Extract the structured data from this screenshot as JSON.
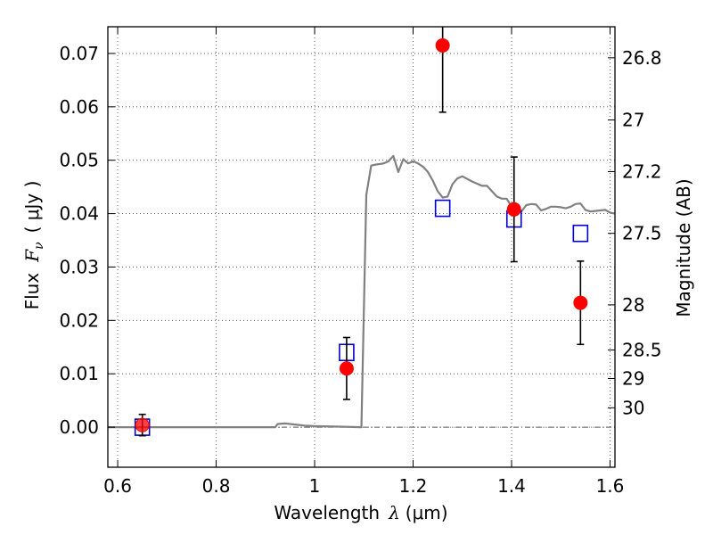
{
  "chart_data": {
    "type": "scatter",
    "xlabel_prefix": "Wavelength",
    "xlabel_symbol": "λ",
    "xlabel_unit": "(μm)",
    "ylabel_prefix": "Flux",
    "ylabel_symbol": "F",
    "ylabel_subscript": "ν",
    "ylabel_unit": "( μJy )",
    "y2label": "Magnitude (AB)",
    "xlim": [
      0.58,
      1.61
    ],
    "ylim": [
      -0.0075,
      0.075
    ],
    "x_ticks": [
      0.6,
      0.8,
      1.0,
      1.2,
      1.4,
      1.6
    ],
    "x_tick_labels": [
      "0.6",
      "0.8",
      "1",
      "1.2",
      "1.4",
      "1.6"
    ],
    "y_ticks": [
      0.0,
      0.01,
      0.02,
      0.03,
      0.04,
      0.05,
      0.06,
      0.07
    ],
    "y_tick_labels": [
      "0.00",
      "0.01",
      "0.02",
      "0.03",
      "0.04",
      "0.05",
      "0.06",
      "0.07"
    ],
    "mag_ticks": [
      26.8,
      27.0,
      27.2,
      27.5,
      28.0,
      28.5,
      29.0,
      30.0
    ],
    "mag_tick_labels": [
      "26.8",
      "27",
      "27.2",
      "27.5",
      "28",
      "28.5",
      "29",
      "30"
    ],
    "grid": true,
    "colors": {
      "observed": "#ff0000",
      "errorbar": "#000000",
      "model_points": "#0000cc",
      "template": "#808080",
      "zero_line": "#555555"
    },
    "series": [
      {
        "kind": "line",
        "x": [
          0.58,
          0.92,
          0.925,
          0.94,
          0.96,
          0.98,
          1.0,
          1.05,
          1.095,
          1.105,
          1.115,
          1.125,
          1.14,
          1.15,
          1.16,
          1.17,
          1.18,
          1.19,
          1.2,
          1.21,
          1.22,
          1.23,
          1.24,
          1.25,
          1.26,
          1.27,
          1.28,
          1.29,
          1.3,
          1.32,
          1.34,
          1.35,
          1.37,
          1.38,
          1.39,
          1.4,
          1.41,
          1.42,
          1.43,
          1.44,
          1.45,
          1.46,
          1.47,
          1.48,
          1.49,
          1.5,
          1.51,
          1.52,
          1.53,
          1.54,
          1.55,
          1.56,
          1.57,
          1.58,
          1.59,
          1.6,
          1.61
        ],
        "y": [
          0.0,
          0.0,
          0.0006,
          0.0007,
          0.0005,
          0.0003,
          0.0002,
          0.0001,
          0.0,
          0.0435,
          0.049,
          0.0492,
          0.0494,
          0.0498,
          0.0508,
          0.0478,
          0.0502,
          0.0494,
          0.0498,
          0.0494,
          0.0488,
          0.0478,
          0.0462,
          0.0442,
          0.043,
          0.0432,
          0.0455,
          0.0466,
          0.047,
          0.046,
          0.0452,
          0.0452,
          0.0432,
          0.0428,
          0.0428,
          0.0413,
          0.0402,
          0.0404,
          0.0416,
          0.0418,
          0.0417,
          0.0406,
          0.0409,
          0.0413,
          0.0413,
          0.0412,
          0.041,
          0.0413,
          0.0418,
          0.0419,
          0.0407,
          0.0404,
          0.0405,
          0.0406,
          0.0407,
          0.0402,
          0.04
        ]
      },
      {
        "kind": "points_open_square",
        "x": [
          0.65,
          1.065,
          1.26,
          1.405,
          1.54
        ],
        "y": [
          0.0,
          0.014,
          0.041,
          0.039,
          0.0363
        ]
      },
      {
        "kind": "points_filled_circle_errorbar",
        "x": [
          0.65,
          1.065,
          1.26,
          1.405,
          1.54
        ],
        "y": [
          0.0004,
          0.011,
          0.0715,
          0.0408,
          0.0233
        ],
        "yerr": [
          0.002,
          0.0058,
          0.0125,
          0.0098,
          0.0078
        ]
      }
    ]
  }
}
